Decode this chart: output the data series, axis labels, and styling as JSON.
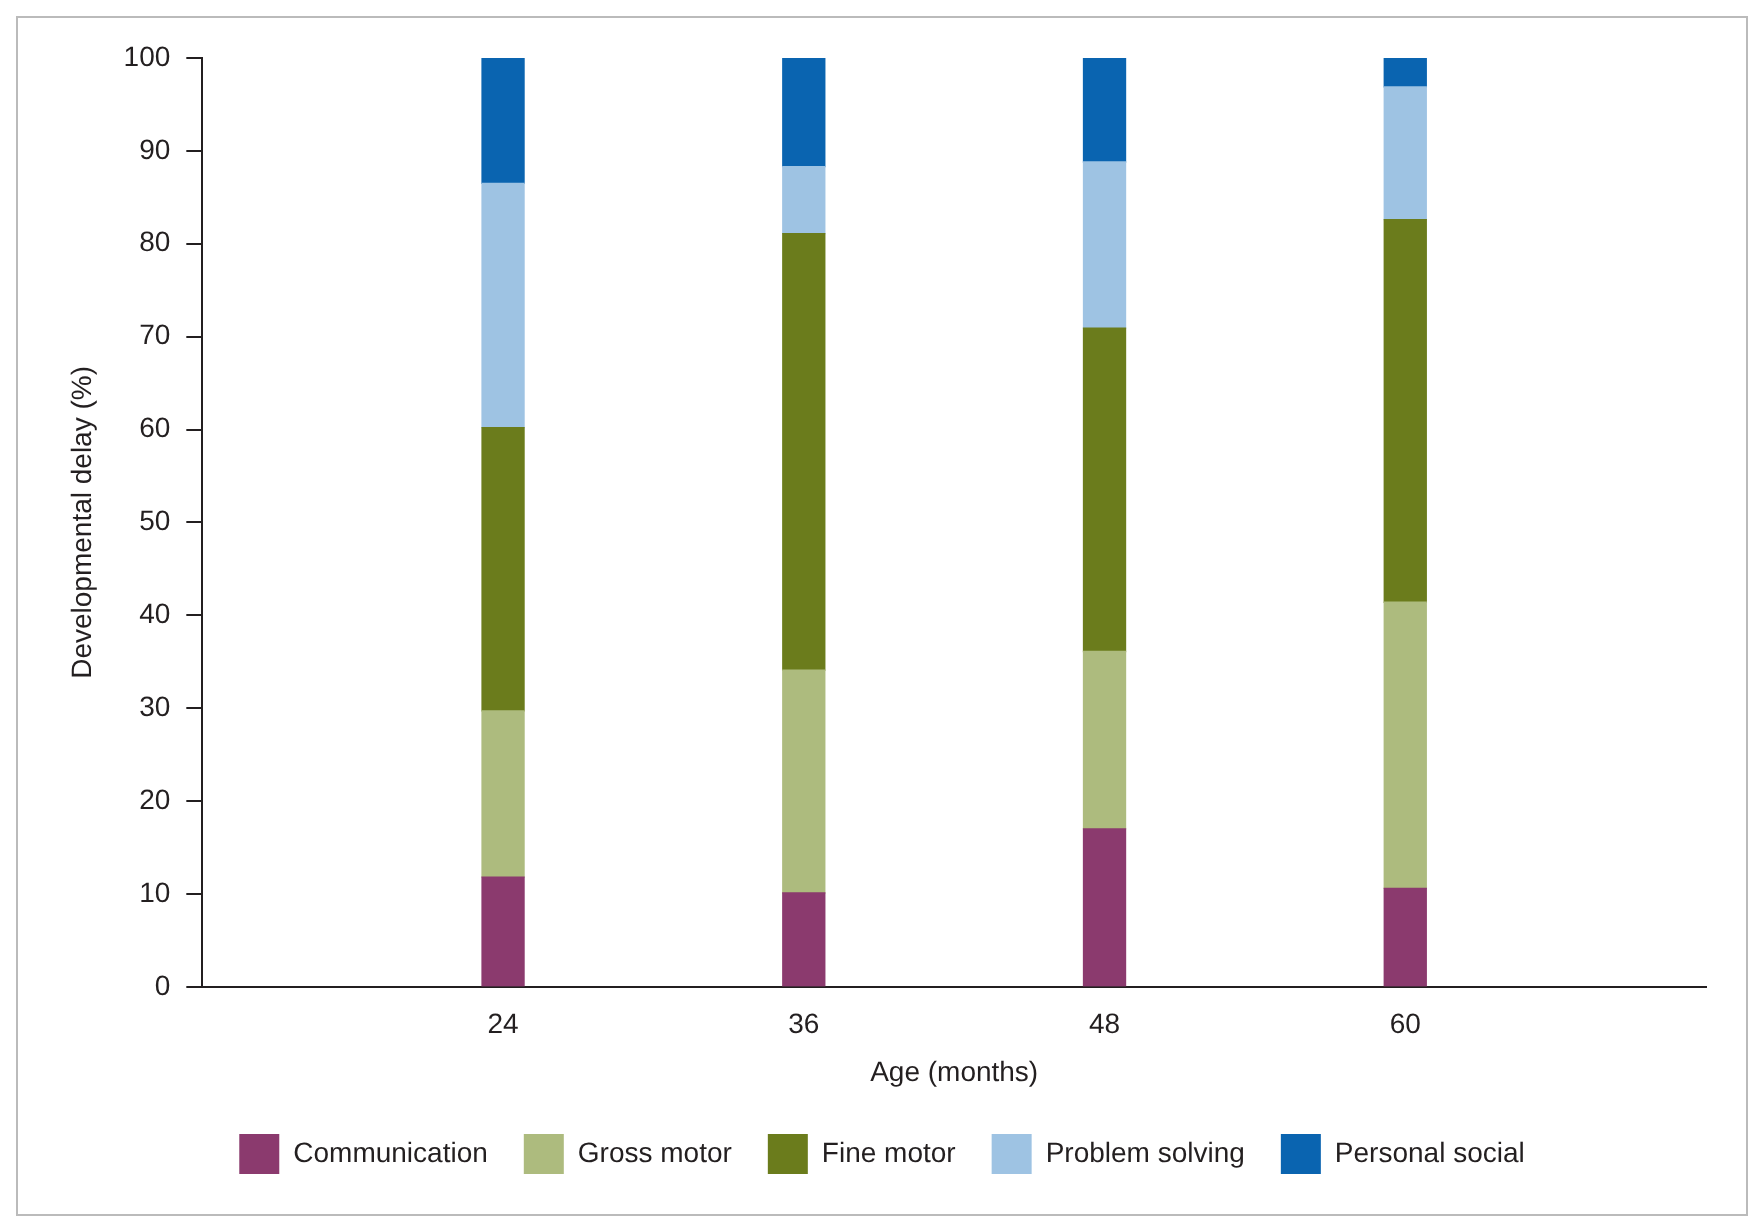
{
  "chart_data": {
    "type": "bar",
    "stacked": true,
    "xlabel": "Age (months)",
    "ylabel": "Developmental delay (%)",
    "x": [
      24,
      36,
      48,
      60
    ],
    "xlim": [
      12,
      72
    ],
    "xticks": [
      24,
      36,
      48,
      60
    ],
    "ylim": [
      0,
      100
    ],
    "yticks": [
      0,
      10,
      20,
      30,
      40,
      50,
      60,
      70,
      80,
      90,
      100
    ],
    "grid": false,
    "legend": "bottom",
    "series": [
      {
        "name": "Communication",
        "color": "#8b3a6e",
        "values": [
          11.8,
          10.1,
          17.0,
          10.6
        ]
      },
      {
        "name": "Gross motor",
        "color": "#adbb7e",
        "values": [
          17.9,
          24.0,
          19.1,
          30.8
        ]
      },
      {
        "name": "Fine motor",
        "color": "#6b7c1c",
        "values": [
          30.5,
          47.0,
          34.8,
          41.2
        ]
      },
      {
        "name": "Problem solving",
        "color": "#9ec3e3",
        "values": [
          26.3,
          7.2,
          17.9,
          14.3
        ]
      },
      {
        "name": "Personal social",
        "color": "#0a64b0",
        "values": [
          13.5,
          11.7,
          11.2,
          3.1
        ]
      }
    ]
  }
}
